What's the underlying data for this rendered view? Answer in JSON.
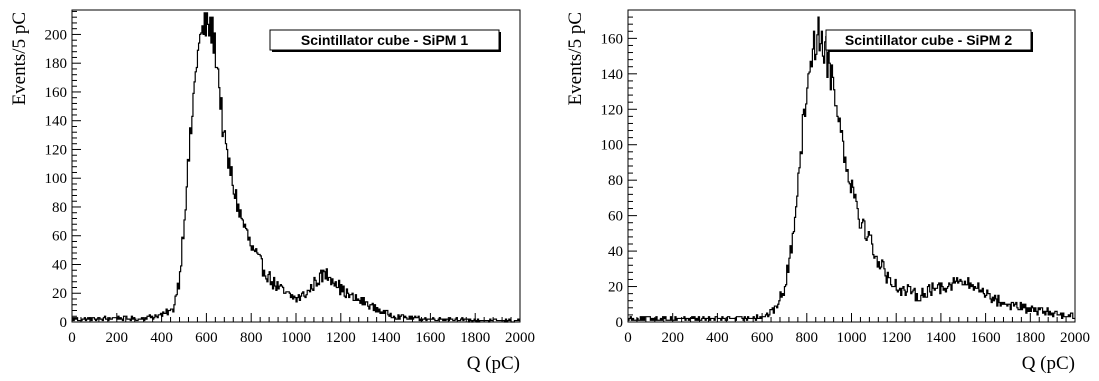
{
  "chart_data": [
    {
      "type": "histogram",
      "legend_label": "Scintillator cube - SiPM 1",
      "legend_position": "top-right",
      "xlabel": "Q (pC)",
      "ylabel": "Events/5 pC",
      "xlim": [
        0,
        2000
      ],
      "ylim": [
        0,
        217
      ],
      "bin_width": 5,
      "grid": false,
      "x_ticks": [
        0,
        200,
        400,
        600,
        800,
        1000,
        1200,
        1400,
        1600,
        1800,
        2000
      ],
      "x_tick_labels": [
        "0",
        "200",
        "400",
        "600",
        "800",
        "1000",
        "1200",
        "1400",
        "1600",
        "1800",
        "2000"
      ],
      "y_ticks": [
        0,
        20,
        40,
        60,
        80,
        100,
        120,
        140,
        160,
        180,
        200
      ],
      "y_tick_labels": [
        "0",
        "20",
        "40",
        "60",
        "80",
        "100",
        "120",
        "140",
        "160",
        "180",
        "200"
      ],
      "x": [
        0,
        100,
        200,
        300,
        400,
        450,
        480,
        500,
        520,
        540,
        560,
        580,
        600,
        615,
        630,
        645,
        660,
        680,
        700,
        720,
        750,
        780,
        800,
        850,
        900,
        950,
        1000,
        1050,
        1100,
        1130,
        1150,
        1180,
        1200,
        1250,
        1300,
        1350,
        1400,
        1450,
        1500,
        1600,
        1700,
        1800,
        1900,
        2000
      ],
      "y": [
        2,
        2,
        3,
        2,
        5,
        8,
        30,
        70,
        110,
        150,
        188,
        200,
        208,
        205,
        200,
        185,
        160,
        125,
        110,
        95,
        75,
        62,
        52,
        38,
        27,
        20,
        16,
        20,
        30,
        33,
        32,
        28,
        23,
        17,
        14,
        10,
        6,
        4,
        3,
        2,
        2,
        1,
        1,
        1
      ]
    },
    {
      "type": "histogram",
      "legend_label": "Scintillator cube - SiPM 2",
      "legend_position": "top-right",
      "xlabel": "Q (pC)",
      "ylabel": "Events/5 pC",
      "xlim": [
        0,
        2000
      ],
      "ylim": [
        0,
        176
      ],
      "bin_width": 5,
      "grid": false,
      "x_ticks": [
        0,
        200,
        400,
        600,
        800,
        1000,
        1200,
        1400,
        1600,
        1800,
        2000
      ],
      "x_tick_labels": [
        "0",
        "200",
        "400",
        "600",
        "800",
        "1000",
        "1200",
        "1400",
        "1600",
        "1800",
        "2000"
      ],
      "y_ticks": [
        0,
        20,
        40,
        60,
        80,
        100,
        120,
        140,
        160
      ],
      "y_tick_labels": [
        "0",
        "20",
        "40",
        "60",
        "80",
        "100",
        "120",
        "140",
        "160"
      ],
      "x": [
        0,
        200,
        400,
        500,
        600,
        650,
        700,
        730,
        760,
        790,
        810,
        830,
        850,
        870,
        890,
        910,
        930,
        950,
        980,
        1000,
        1020,
        1050,
        1080,
        1100,
        1150,
        1200,
        1250,
        1300,
        1350,
        1400,
        1450,
        1480,
        1500,
        1550,
        1600,
        1650,
        1700,
        1800,
        1900,
        2000
      ],
      "y": [
        2,
        2,
        2,
        2,
        3,
        6,
        18,
        40,
        80,
        118,
        145,
        155,
        162,
        160,
        150,
        140,
        130,
        110,
        88,
        80,
        68,
        55,
        48,
        40,
        28,
        20,
        17,
        15,
        18,
        20,
        22,
        23,
        22,
        20,
        17,
        12,
        10,
        7,
        5,
        3
      ]
    }
  ]
}
